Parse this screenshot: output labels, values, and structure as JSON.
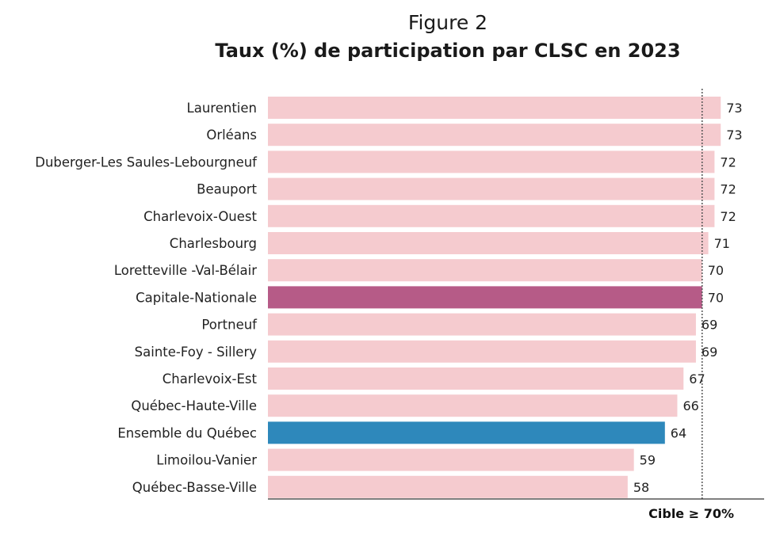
{
  "figure_label": "Figure 2",
  "chart_data": {
    "type": "bar",
    "orientation": "horizontal",
    "title": "Taux (%) de participation par CLSC en 2023",
    "categories": [
      "Laurentien",
      "Orléans",
      "Duberger-Les Saules-Lebourgneuf",
      "Beauport",
      "Charlevoix-Ouest",
      "Charlesbourg",
      "Loretteville -Val-Bélair",
      "Capitale-Nationale",
      "Portneuf",
      "Sainte-Foy - Sillery",
      "Charlevoix-Est",
      "Québec-Haute-Ville",
      "Ensemble du Québec",
      "Limoilou-Vanier",
      "Québec-Basse-Ville"
    ],
    "values": [
      73,
      73,
      72,
      72,
      72,
      71,
      70,
      70,
      69,
      69,
      67,
      66,
      64,
      59,
      58
    ],
    "xlim": [
      0,
      80
    ],
    "target": {
      "value": 70,
      "label": "Cible ≥ 70%"
    },
    "colors": {
      "default": "#f5cbcf",
      "Capitale-Nationale": "#b65b87",
      "Ensemble du Québec": "#2e88bb",
      "target_line": "#555555",
      "axis": "#333333"
    },
    "grid": false,
    "legend": "none"
  }
}
